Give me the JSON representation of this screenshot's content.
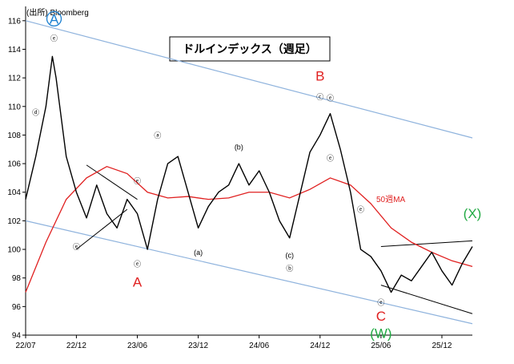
{
  "chart_data": {
    "type": "candlestick",
    "title": "ドルインデックス（週足）",
    "source": "(出所) Bloomberg",
    "ylim": [
      94,
      117
    ],
    "y_ticks": [
      94,
      96,
      98,
      100,
      102,
      104,
      106,
      108,
      110,
      112,
      114,
      116
    ],
    "x_ticks": [
      "22/07",
      "22/12",
      "23/06",
      "23/12",
      "24/06",
      "24/12",
      "25/06",
      "25/12"
    ],
    "x_range": [
      "2022-07",
      "2026-03"
    ],
    "ma_label": "50週MA",
    "colors": {
      "price": "#000000",
      "ma": "#e02020",
      "channel": "#8fb3dd",
      "wave_blue": "#1a7fd0",
      "wave_red": "#e02020",
      "wave_green": "#22aa44"
    },
    "price_points": [
      [
        "2022-07",
        103.5
      ],
      [
        "2022-08",
        106.5
      ],
      [
        "2022-09",
        110.0
      ],
      [
        "2022-09-20",
        113.5
      ],
      [
        "2022-10",
        112.0
      ],
      [
        "2022-11",
        106.5
      ],
      [
        "2022-12",
        104.0
      ],
      [
        "2023-01",
        102.2
      ],
      [
        "2023-02",
        104.5
      ],
      [
        "2023-03",
        102.5
      ],
      [
        "2023-04",
        101.5
      ],
      [
        "2023-05",
        103.5
      ],
      [
        "2023-06",
        102.5
      ],
      [
        "2023-07",
        100.0
      ],
      [
        "2023-08",
        103.5
      ],
      [
        "2023-09",
        106.0
      ],
      [
        "2023-10",
        106.5
      ],
      [
        "2023-11",
        104.0
      ],
      [
        "2023-12",
        101.5
      ],
      [
        "2024-01",
        103.0
      ],
      [
        "2024-02",
        104.0
      ],
      [
        "2024-03",
        104.5
      ],
      [
        "2024-04",
        106.0
      ],
      [
        "2024-05",
        104.5
      ],
      [
        "2024-06",
        105.5
      ],
      [
        "2024-07",
        104.0
      ],
      [
        "2024-08",
        102.0
      ],
      [
        "2024-09",
        100.8
      ],
      [
        "2024-10",
        103.8
      ],
      [
        "2024-11",
        106.8
      ],
      [
        "2024-12",
        108.0
      ],
      [
        "2025-01",
        109.5
      ],
      [
        "2025-02",
        107.0
      ],
      [
        "2025-03",
        104.0
      ],
      [
        "2025-04",
        100.0
      ],
      [
        "2025-05",
        99.5
      ],
      [
        "2025-06",
        98.5
      ],
      [
        "2025-07",
        97.0
      ],
      [
        "2025-08",
        98.2
      ],
      [
        "2025-09",
        97.8
      ],
      [
        "2025-10",
        98.8
      ],
      [
        "2025-11",
        99.8
      ],
      [
        "2025-12",
        98.5
      ],
      [
        "2026-01",
        97.5
      ],
      [
        "2026-02",
        99.0
      ],
      [
        "2026-03",
        100.2
      ]
    ],
    "ma_points": [
      [
        "2022-07",
        97.0
      ],
      [
        "2022-09",
        100.5
      ],
      [
        "2022-11",
        103.5
      ],
      [
        "2023-01",
        105.0
      ],
      [
        "2023-03",
        105.8
      ],
      [
        "2023-05",
        105.3
      ],
      [
        "2023-07",
        104.0
      ],
      [
        "2023-09",
        103.6
      ],
      [
        "2023-11",
        103.7
      ],
      [
        "2024-01",
        103.5
      ],
      [
        "2024-03",
        103.6
      ],
      [
        "2024-05",
        104.0
      ],
      [
        "2024-07",
        104.0
      ],
      [
        "2024-09",
        103.6
      ],
      [
        "2024-11",
        104.2
      ],
      [
        "2025-01",
        105.0
      ],
      [
        "2025-03",
        104.5
      ],
      [
        "2025-05",
        103.2
      ],
      [
        "2025-07",
        101.5
      ],
      [
        "2025-09",
        100.5
      ],
      [
        "2025-11",
        99.8
      ],
      [
        "2026-01",
        99.2
      ],
      [
        "2026-03",
        98.8
      ]
    ],
    "channel_upper": [
      [
        "2022-07",
        116.0
      ],
      [
        "2026-03",
        107.8
      ]
    ],
    "channel_lower": [
      [
        "2022-07",
        102.0
      ],
      [
        "2026-03",
        94.8
      ]
    ],
    "triangle_lines": [
      [
        [
          "2023-01",
          105.9
        ],
        [
          "2023-06",
          103.5
        ]
      ],
      [
        [
          "2022-12",
          100.0
        ],
        [
          "2023-05",
          102.8
        ]
      ],
      [
        [
          "2025-06",
          100.2
        ],
        [
          "2026-03",
          100.6
        ]
      ],
      [
        [
          "2025-06",
          97.5
        ],
        [
          "2026-03",
          95.5
        ]
      ]
    ],
    "wave_labels": [
      {
        "text": "A",
        "date": "2022-09-25",
        "value": 115.8,
        "style": "circle-blue"
      },
      {
        "text": "A",
        "date": "2023-06",
        "value": 97.4,
        "style": "red"
      },
      {
        "text": "B",
        "date": "2024-12",
        "value": 111.8,
        "style": "red"
      },
      {
        "text": "C",
        "date": "2025-06",
        "value": 95.0,
        "style": "red"
      },
      {
        "text": "(W)",
        "date": "2025-06",
        "value": 93.8,
        "style": "green"
      },
      {
        "text": "(X)",
        "date": "2026-03",
        "value": 102.2,
        "style": "green"
      },
      {
        "text": "ⓐ",
        "date": "2023-08",
        "value": 107.8,
        "style": "small"
      },
      {
        "text": "ⓑ",
        "date": "2024-09",
        "value": 98.5,
        "style": "small"
      },
      {
        "text": "ⓒ",
        "date": "2024-12",
        "value": 110.5,
        "style": "small"
      },
      {
        "text": "(b)",
        "date": "2024-04",
        "value": 107.0,
        "style": "small"
      },
      {
        "text": "(a)",
        "date": "2023-12",
        "value": 99.6,
        "style": "small"
      },
      {
        "text": "(c)",
        "date": "2024-09",
        "value": 99.4,
        "style": "small"
      },
      {
        "text": "ⓔ",
        "date": "2022-09-25",
        "value": 114.6,
        "style": "small"
      },
      {
        "text": "ⓓ",
        "date": "2022-08",
        "value": 109.4,
        "style": "small"
      },
      {
        "text": "ⓔ",
        "date": "2023-06",
        "value": 104.6,
        "style": "small"
      },
      {
        "text": "ⓔ",
        "date": "2022-12",
        "value": 100.0,
        "style": "small"
      },
      {
        "text": "ⓔ",
        "date": "2023-06",
        "value": 98.8,
        "style": "small"
      },
      {
        "text": "ⓔ",
        "date": "2025-01",
        "value": 110.4,
        "style": "small"
      },
      {
        "text": "ⓔ",
        "date": "2025-01",
        "value": 106.2,
        "style": "small"
      },
      {
        "text": "ⓔ",
        "date": "2025-04",
        "value": 102.6,
        "style": "small"
      },
      {
        "text": "ⓔ",
        "date": "2025-06",
        "value": 96.1,
        "style": "small"
      }
    ]
  }
}
